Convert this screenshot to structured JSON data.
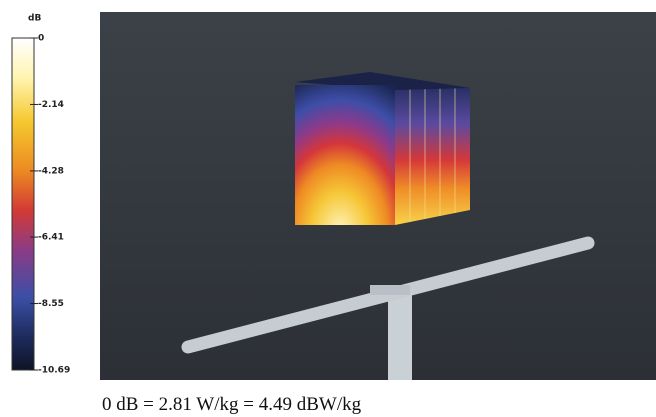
{
  "colorbar": {
    "unit": "dB",
    "ticks": [
      0,
      -2.14,
      -4.28,
      -6.41,
      -8.55,
      -10.69
    ]
  },
  "caption": "0 dB = 2.81 W/kg = 4.49 dBW/kg"
}
